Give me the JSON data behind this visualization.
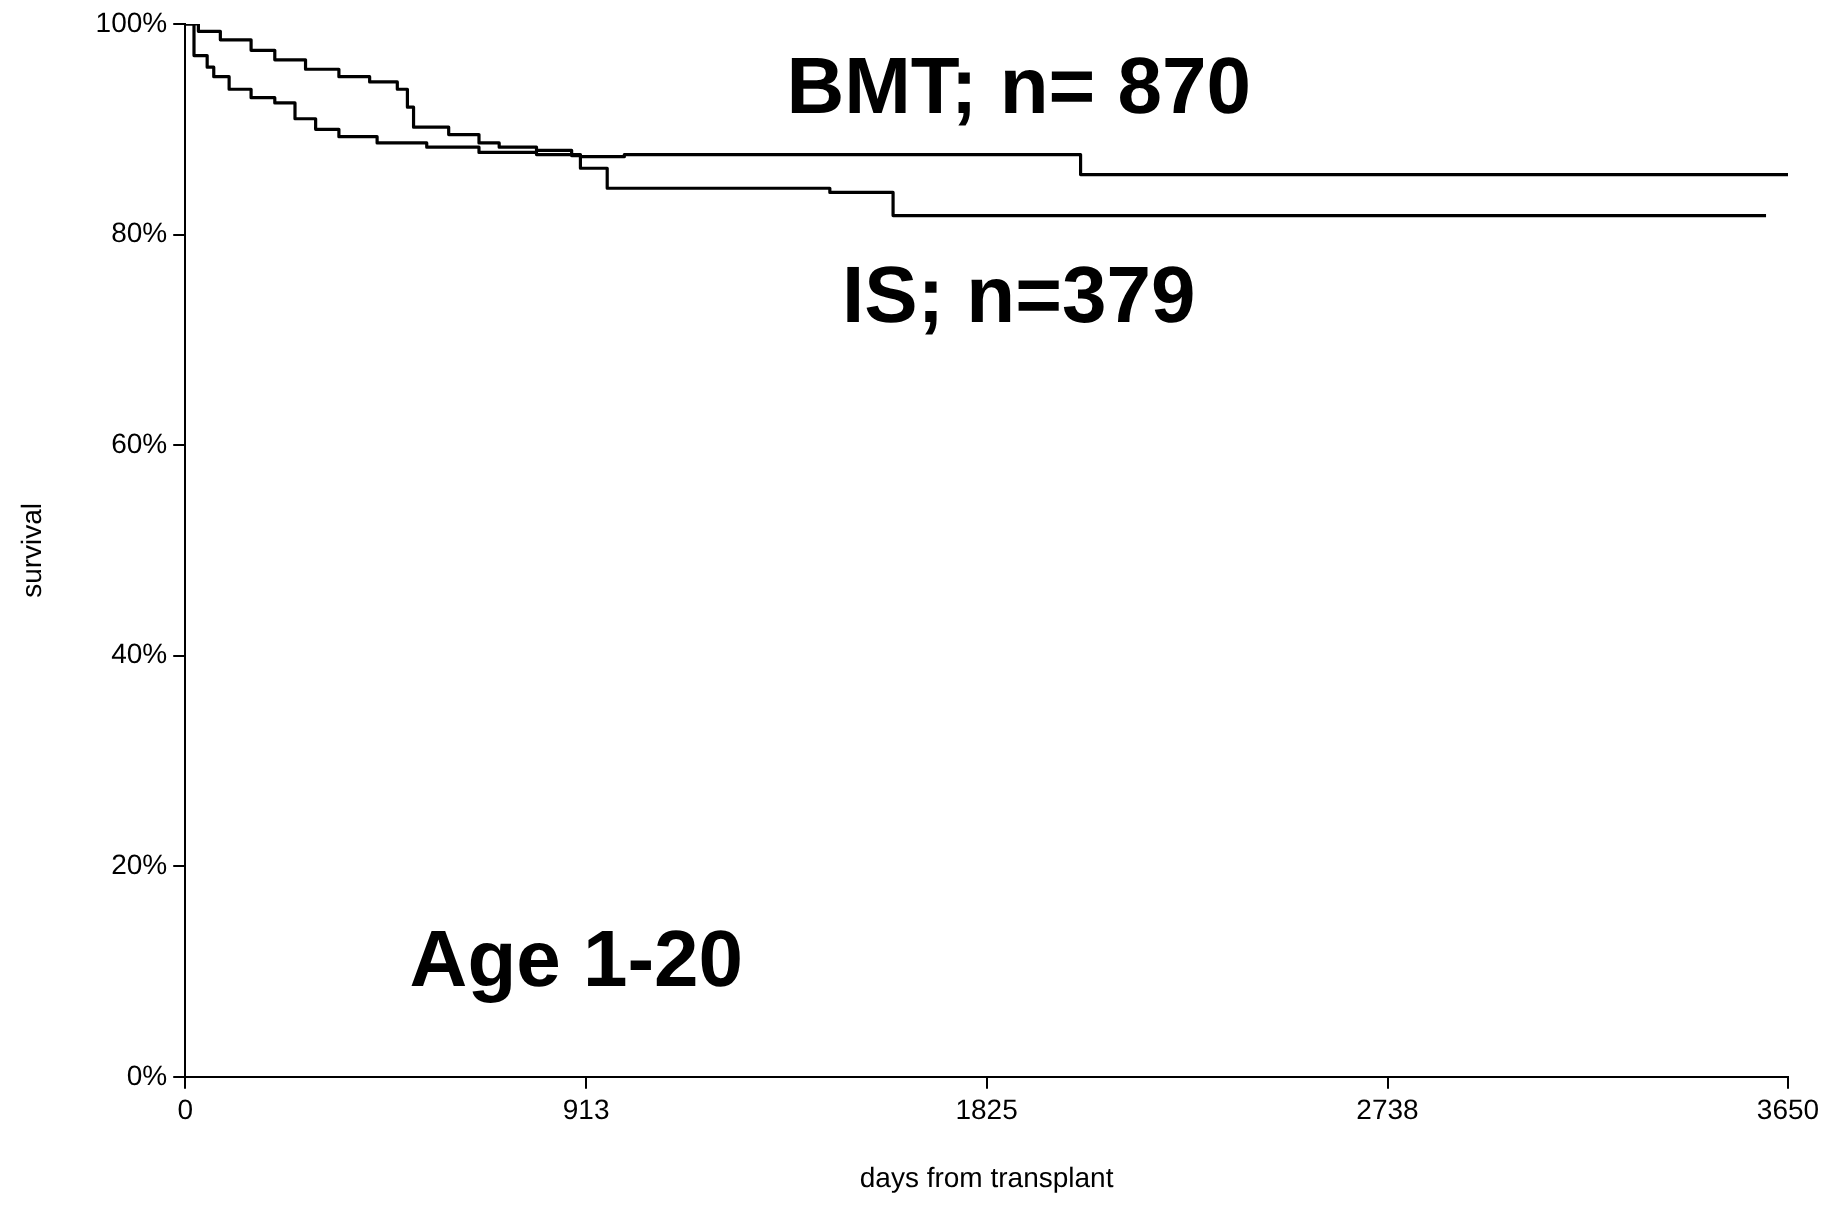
{
  "chart_data": {
    "type": "step",
    "xlabel": "days from transplant",
    "ylabel": "survival",
    "xlim": [
      0,
      3650
    ],
    "ylim": [
      0,
      100
    ],
    "xticks": [
      0,
      913,
      1825,
      2738,
      3650
    ],
    "yticks": [
      {
        "value": 0,
        "label": "0%"
      },
      {
        "value": 20,
        "label": "20%"
      },
      {
        "value": 40,
        "label": "40%"
      },
      {
        "value": 60,
        "label": "60%"
      },
      {
        "value": 80,
        "label": "80%"
      },
      {
        "value": 100,
        "label": "100%"
      }
    ],
    "grid": false,
    "legend": false,
    "marker": "none",
    "line_style": "solid",
    "series": [
      {
        "name": "BMT; n= 870",
        "color": "#000000",
        "x": [
          0,
          20,
          50,
          65,
          100,
          150,
          204,
          250,
          297,
          350,
          437,
          550,
          669,
          800,
          900,
          1000,
          1300,
          1700,
          2039,
          3650
        ],
        "values": [
          100,
          97,
          95.9,
          95,
          93.8,
          93,
          92.5,
          91,
          90,
          89.3,
          88.7,
          88.3,
          87.8,
          87.6,
          87.4,
          87.6,
          87.6,
          87.6,
          85.7,
          85.7
        ]
      },
      {
        "name": "IS; n=379",
        "color": "#000000",
        "x": [
          0,
          30,
          80,
          150,
          204,
          274,
          350,
          420,
          483,
          506,
          520,
          600,
          669,
          715,
          800,
          880,
          900,
          961,
          1200,
          1468,
          1612,
          3600
        ],
        "values": [
          100,
          99.3,
          98.5,
          97.5,
          96.6,
          95.7,
          95,
          94.5,
          93.8,
          92.1,
          90.2,
          89.5,
          88.7,
          88.3,
          88,
          87.5,
          86.3,
          84.4,
          84.4,
          84,
          81.8,
          81.8
        ]
      }
    ],
    "annotations": [
      "Age 1-20"
    ]
  }
}
